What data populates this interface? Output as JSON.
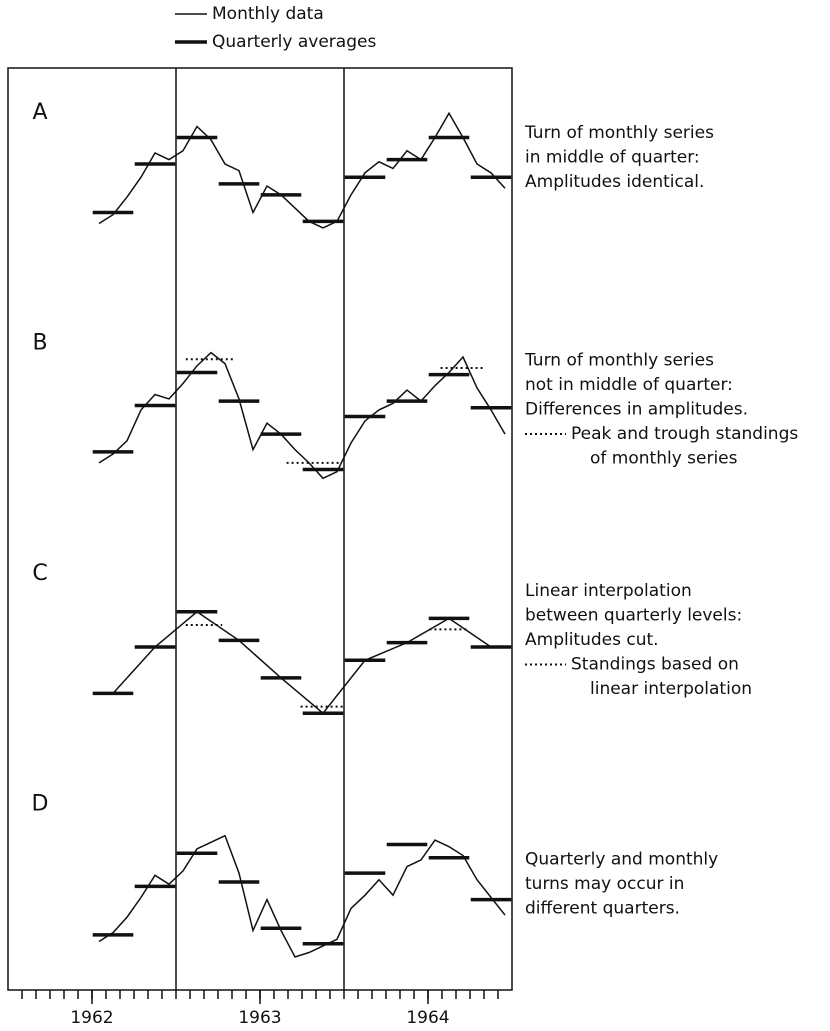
{
  "chart_data": [
    {
      "type": "line",
      "panel": "A",
      "note": [
        "Turn of monthly series",
        "in middle of quarter:",
        "Amplitudes identical."
      ],
      "ylim": [
        0,
        100
      ],
      "series": [
        {
          "name": "Monthly data",
          "color": "#111",
          "width": 1.5,
          "x": [
            6.5,
            7.5,
            8.5,
            9.5,
            10.5,
            11.5,
            12.5,
            13.5,
            14.5,
            15.5,
            16.5,
            17.5,
            18.5,
            19.5,
            20.5,
            21.5,
            22.5,
            23.5,
            24.5,
            25.5,
            26.5,
            27.5,
            28.5,
            29.5,
            30.5,
            31.5,
            32.5,
            33.5,
            34.5,
            35.5
          ],
          "values": [
            34,
            38,
            46,
            55,
            66,
            63,
            67,
            78,
            72,
            61,
            58,
            39,
            51,
            47,
            41,
            35,
            32,
            35,
            47,
            57,
            62,
            59,
            67,
            63,
            73,
            84,
            73,
            61,
            57,
            50
          ]
        },
        {
          "name": "Quarterly averages",
          "color": "#111",
          "width": 3.5,
          "x": [
            7.5,
            10.5,
            13.5,
            16.5,
            19.5,
            22.5,
            25.5,
            28.5,
            31.5,
            34.5
          ],
          "values": [
            39,
            61,
            73,
            52,
            47,
            35,
            55,
            63,
            73,
            55
          ]
        }
      ]
    },
    {
      "type": "line",
      "panel": "B",
      "note": [
        "Turn of monthly series",
        "not in middle of quarter:",
        "Differences in amplitudes."
      ],
      "dotted_note": [
        "Peak and trough standings",
        "of monthly series"
      ],
      "ylim": [
        0,
        100
      ],
      "series": [
        {
          "color": "#111",
          "width": 1.5,
          "x": [
            6.5,
            7.5,
            8.5,
            9.5,
            10.5,
            11.5,
            12.5,
            13.5,
            14.5,
            15.5,
            16.5,
            17.5,
            18.5,
            19.5,
            20.5,
            21.5,
            22.5,
            23.5,
            24.5,
            25.5,
            26.5,
            27.5,
            28.5,
            29.5,
            30.5,
            31.5,
            32.5,
            33.5,
            34.5,
            35.5
          ],
          "values": [
            30,
            34,
            40,
            54,
            61,
            59,
            66,
            74,
            80,
            75,
            59,
            36,
            48,
            43,
            36,
            30,
            23,
            26,
            39,
            49,
            54,
            57,
            63,
            58,
            65,
            71,
            78,
            64,
            54,
            43
          ]
        },
        {
          "color": "#111",
          "width": 3.5,
          "x": [
            7.5,
            10.5,
            13.5,
            16.5,
            19.5,
            22.5,
            25.5,
            28.5,
            31.5,
            34.5
          ],
          "values": [
            35,
            56,
            71,
            58,
            43,
            27,
            51,
            58,
            70,
            55
          ]
        }
      ],
      "dotted": [
        {
          "x": [
            12.7,
            16.2
          ],
          "value": 77
        },
        {
          "x": [
            19.9,
            23.7
          ],
          "value": 30
        },
        {
          "x": [
            30.9,
            34.1
          ],
          "value": 73
        }
      ]
    },
    {
      "type": "line",
      "panel": "C",
      "note": [
        "Linear interpolation",
        "between quarterly levels:",
        "Amplitudes cut."
      ],
      "dotted_note": [
        "Standings based on",
        "linear interpolation"
      ],
      "ylim": [
        0,
        100
      ],
      "series": [
        {
          "color": "#111",
          "width": 1.5,
          "x": [
            7.5,
            10.5,
            13.5,
            16.5,
            19.5,
            22.5,
            25.5,
            28.5,
            31.5,
            34.5
          ],
          "values": [
            30,
            51,
            67,
            54,
            37,
            21,
            45,
            53,
            64,
            51
          ]
        },
        {
          "color": "#111",
          "width": 3.5,
          "x": [
            7.5,
            10.5,
            13.5,
            16.5,
            19.5,
            22.5,
            25.5,
            28.5,
            31.5,
            34.5
          ],
          "values": [
            30,
            51,
            67,
            54,
            37,
            21,
            45,
            53,
            64,
            51
          ]
        }
      ],
      "dotted": [
        {
          "x": [
            12.7,
            15.3
          ],
          "value": 61
        },
        {
          "x": [
            20.9,
            23.9
          ],
          "value": 24
        },
        {
          "x": [
            30.1,
            32.9
          ],
          "value": 59
        }
      ]
    },
    {
      "type": "line",
      "panel": "D",
      "note": [
        "Quarterly and monthly",
        "turns may occur in",
        "different quarters."
      ],
      "ylim": [
        0,
        100
      ],
      "xlim": [
        0,
        36
      ],
      "xlines": [
        12,
        24
      ],
      "xminorticks": [
        1,
        2,
        3,
        4,
        5,
        6,
        7,
        8,
        9,
        10,
        11,
        12,
        13,
        14,
        15,
        16,
        17,
        18,
        19,
        20,
        21,
        22,
        23,
        24,
        25,
        26,
        27,
        28,
        29,
        30,
        31,
        32,
        33,
        34,
        35
      ],
      "xticks": [
        {
          "value": 6,
          "label": "1962"
        },
        {
          "value": 18,
          "label": "1963"
        },
        {
          "value": 30,
          "label": "1964"
        }
      ],
      "series": [
        {
          "color": "#111",
          "width": 1.5,
          "x": [
            6.5,
            7.5,
            8.5,
            9.5,
            10.5,
            11.5,
            12.5,
            13.5,
            14.5,
            15.5,
            16.5,
            17.5,
            18.5,
            19.5,
            20.5,
            21.5,
            22.5,
            23.5,
            24.5,
            25.5,
            26.5,
            27.5,
            28.5,
            29.5,
            30.5,
            31.5,
            32.5,
            33.5,
            34.5,
            35.5
          ],
          "values": [
            22,
            26,
            33,
            42,
            52,
            48,
            54,
            64,
            67,
            70,
            53,
            27,
            41,
            27,
            15,
            17,
            20,
            23,
            37,
            43,
            50,
            43,
            56,
            59,
            68,
            65,
            61,
            50,
            42,
            34
          ]
        },
        {
          "color": "#111",
          "width": 3.5,
          "x": [
            7.5,
            10.5,
            13.5,
            16.5,
            19.5,
            22.5,
            25.5,
            28.5,
            31.5,
            34.5
          ],
          "values": [
            25,
            47,
            62,
            49,
            28,
            21,
            53,
            66,
            60,
            41
          ]
        }
      ]
    }
  ]
}
